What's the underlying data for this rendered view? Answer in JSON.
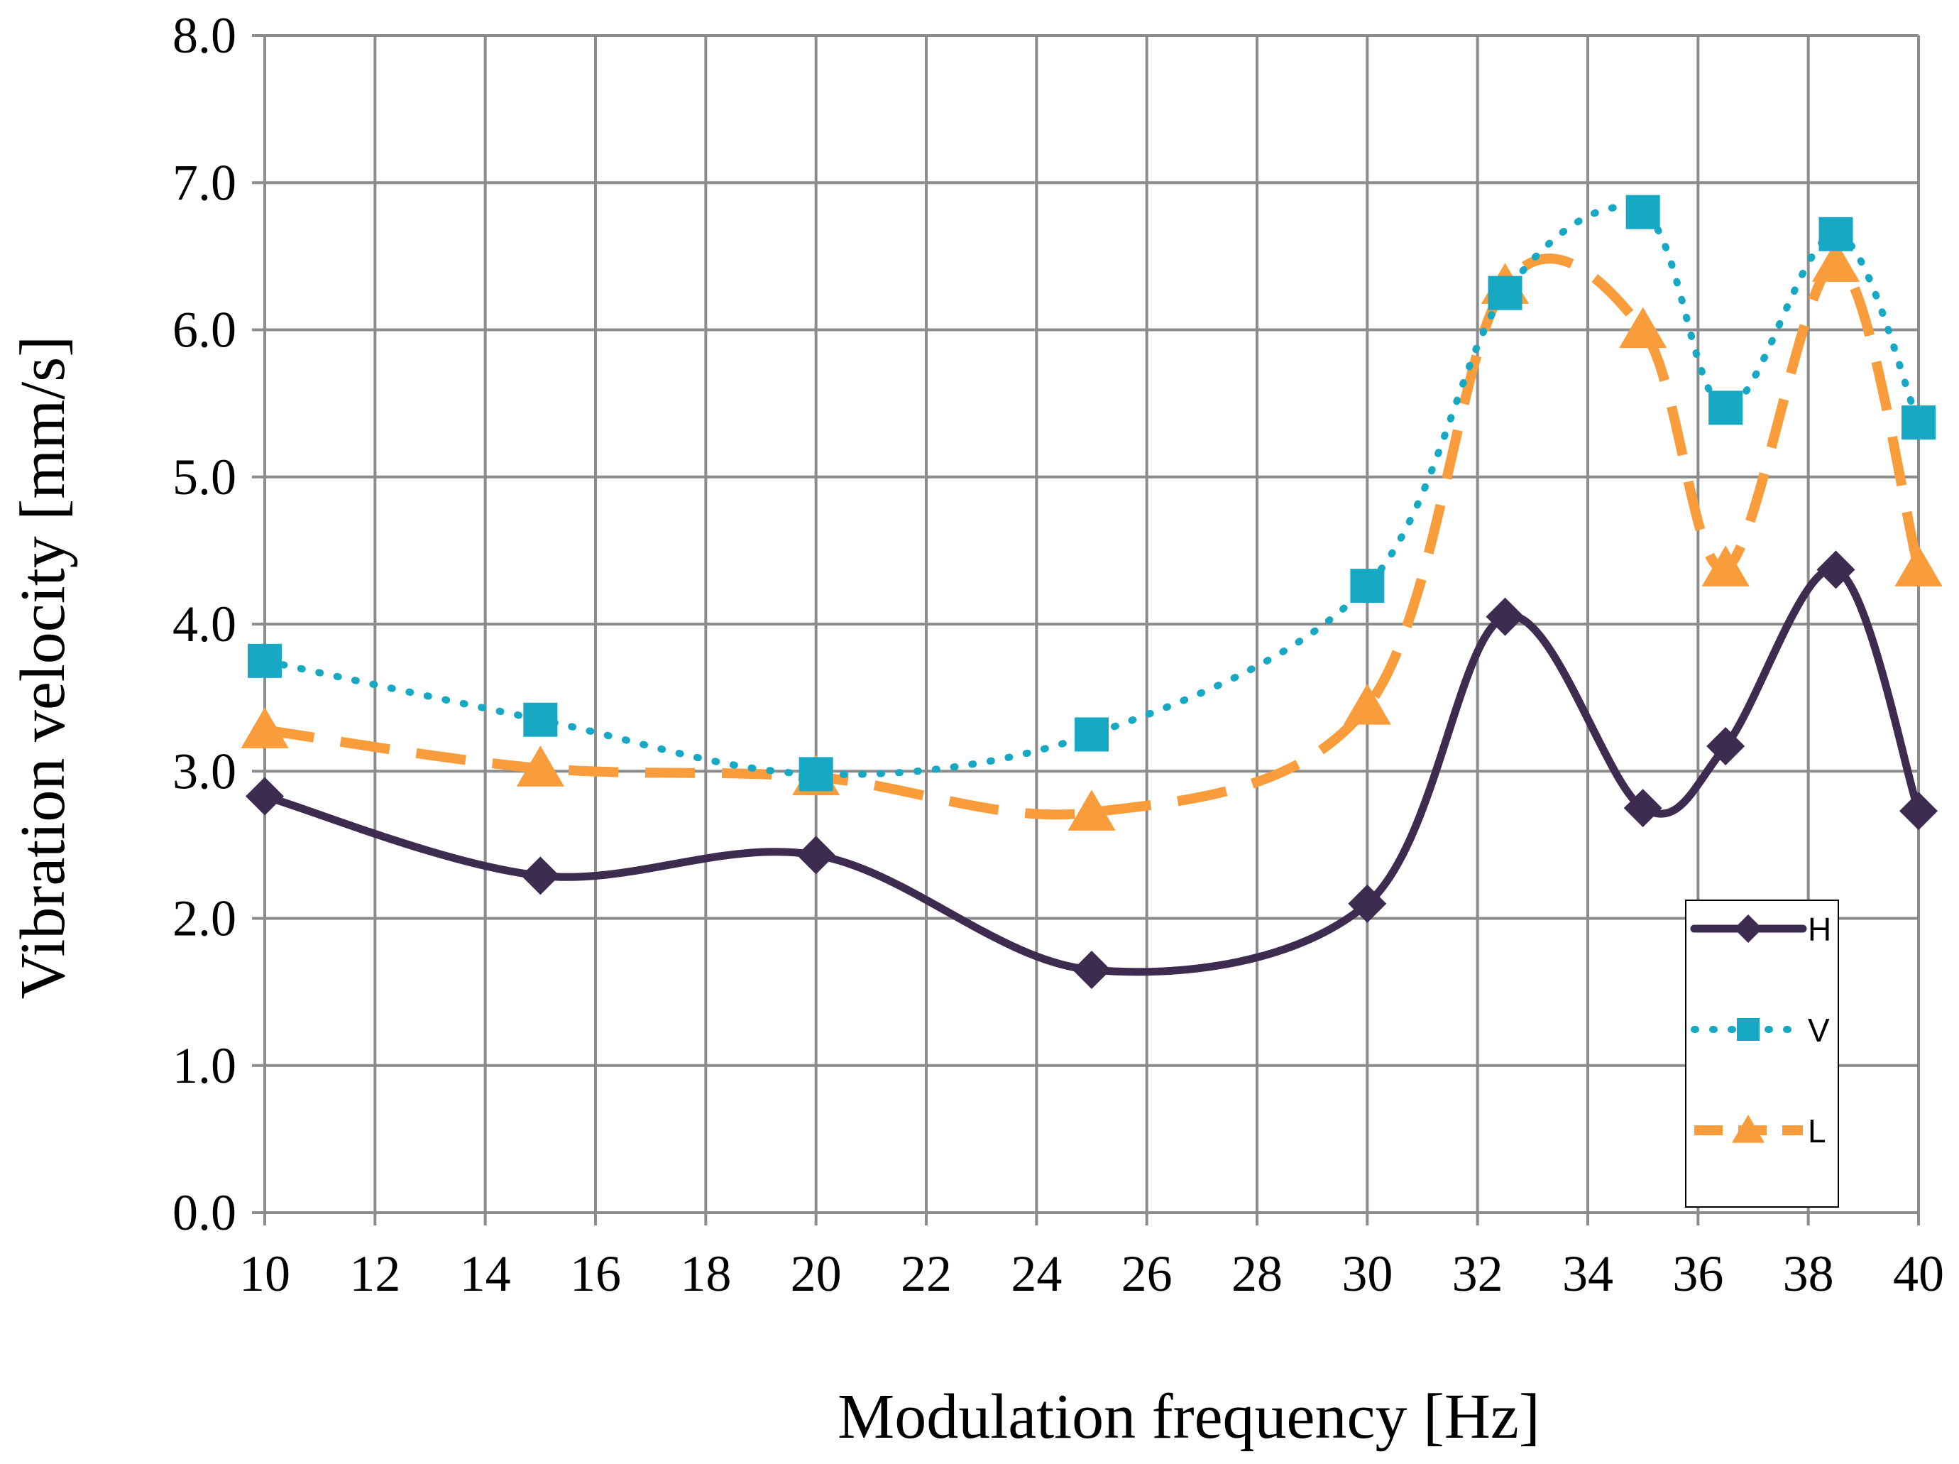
{
  "chart_data": {
    "type": "line",
    "title": "",
    "xlabel": "Modulation frequency [Hz]",
    "ylabel": "Vibration velocity [mm/s]",
    "xlim": [
      10,
      40
    ],
    "ylim": [
      0,
      8
    ],
    "x_ticks": [
      10,
      12,
      14,
      16,
      18,
      20,
      22,
      24,
      26,
      28,
      30,
      32,
      34,
      36,
      38,
      40
    ],
    "y_ticks": [
      "0.0",
      "1.0",
      "2.0",
      "3.0",
      "4.0",
      "5.0",
      "6.0",
      "7.0",
      "8.0"
    ],
    "grid": true,
    "legend_position": "bottom-right",
    "series": [
      {
        "name": "H",
        "color": "#3d2b50",
        "line_style": "solid",
        "marker": "diamond",
        "x": [
          10,
          15,
          20,
          25,
          30,
          32.5,
          35,
          36.5,
          38.5,
          40
        ],
        "values": [
          2.83,
          2.29,
          2.43,
          1.65,
          2.1,
          4.05,
          2.75,
          3.17,
          4.37,
          2.73
        ]
      },
      {
        "name": "V",
        "color": "#17a9c4",
        "line_style": "dotted",
        "marker": "square",
        "x": [
          10,
          15,
          20,
          25,
          30,
          32.5,
          35,
          36.5,
          38.5,
          40
        ],
        "values": [
          3.75,
          3.35,
          2.98,
          3.25,
          4.26,
          6.25,
          6.8,
          5.47,
          6.65,
          5.37
        ]
      },
      {
        "name": "L",
        "color": "#f99c3c",
        "line_style": "dashed",
        "marker": "triangle",
        "x": [
          10,
          15,
          20,
          25,
          30,
          32.5,
          35,
          36.5,
          38.5,
          40
        ],
        "values": [
          3.28,
          3.02,
          2.96,
          2.72,
          3.44,
          6.3,
          6.0,
          4.38,
          6.45,
          4.38
        ]
      }
    ]
  }
}
